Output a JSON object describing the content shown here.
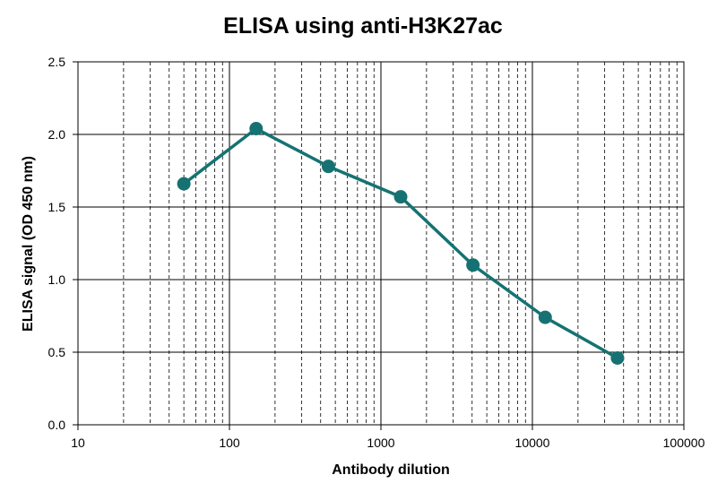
{
  "chart_data": {
    "type": "line",
    "title": "ELISA using anti-H3K27ac",
    "x_label": "Antibody dilution",
    "y_label": "ELISA signal (OD 450 nm)",
    "x": [
      50,
      150,
      450,
      1350,
      4050,
      12150,
      36450
    ],
    "series": [
      {
        "color": "#167272",
        "values": [
          1.66,
          2.04,
          1.78,
          1.57,
          1.1,
          0.74,
          0.46
        ]
      }
    ],
    "x_scale": "log",
    "xlim": [
      10,
      100000
    ],
    "xticks": [
      10,
      100,
      1000,
      10000,
      100000
    ],
    "ylim": [
      0,
      2.5
    ],
    "yticks": [
      {
        "value": 0,
        "label": "0.0"
      },
      0.5,
      {
        "value": 1,
        "label": "1.0"
      },
      1.5,
      {
        "value": 2,
        "label": "2.0"
      },
      2.5
    ],
    "grid": true
  }
}
